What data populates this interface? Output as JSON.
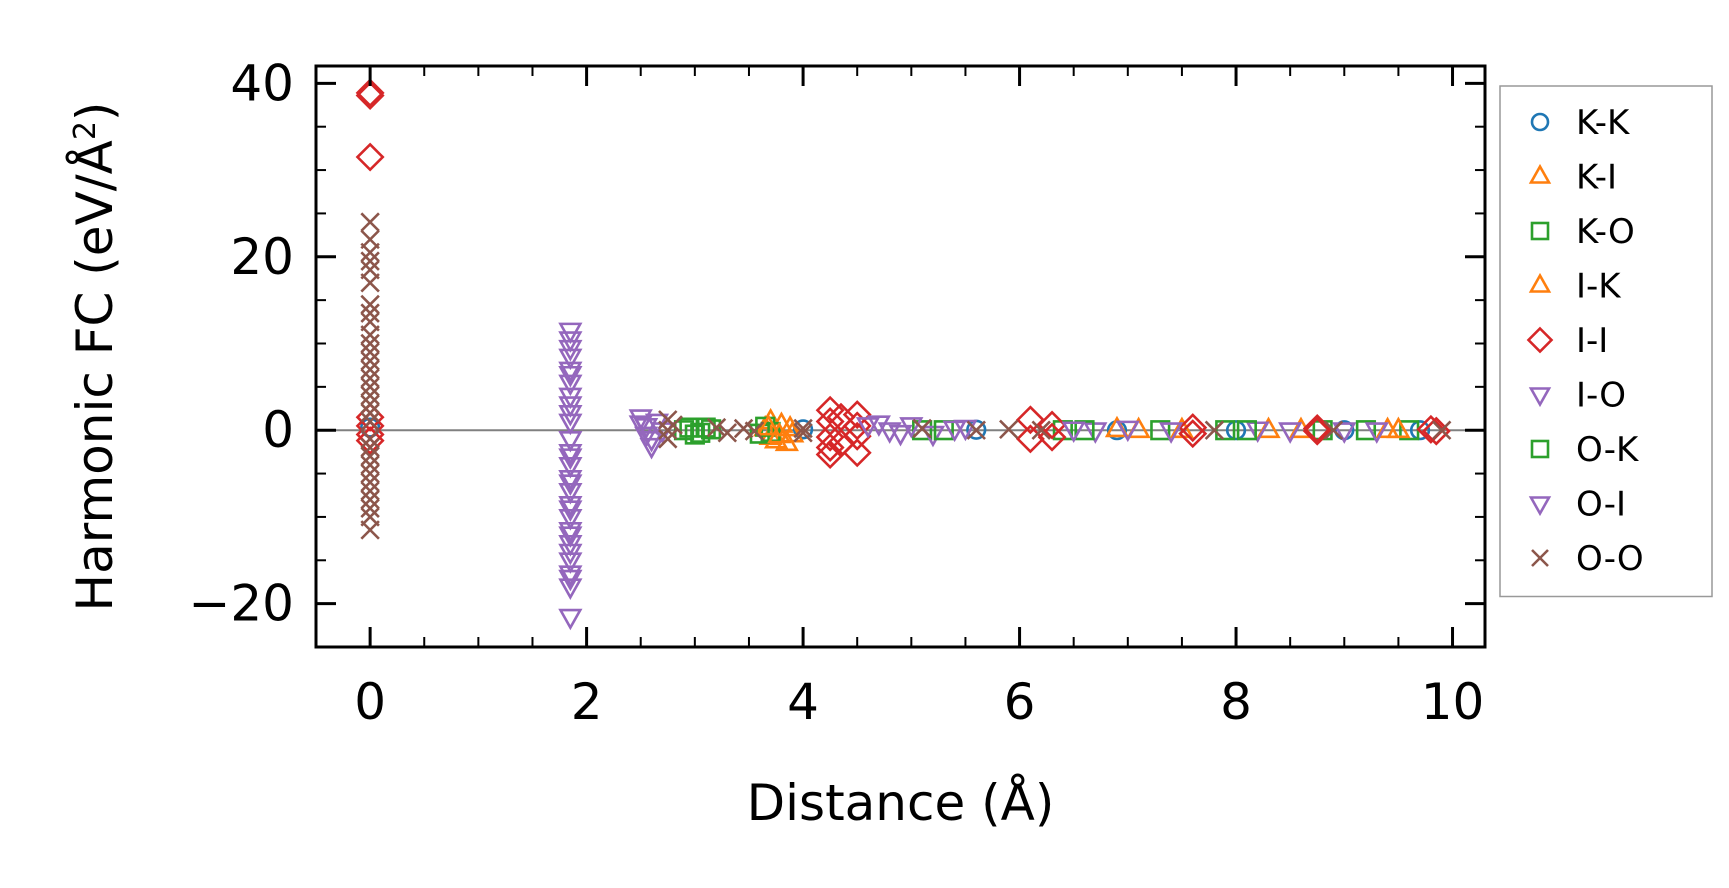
{
  "chart_data": {
    "type": "scatter",
    "title": "",
    "xlabel": "Distance (Å)",
    "ylabel": "Harmonic FC (eV/Å²)",
    "ylabel_base": "Harmonic FC (eV/Å",
    "ylabel_sup": "2",
    "ylabel_end": ")",
    "xlim": [
      -0.5,
      10.3
    ],
    "ylim": [
      -25,
      42
    ],
    "x_ticks": [
      0,
      2,
      4,
      6,
      8,
      10
    ],
    "x_tick_labels": [
      "0",
      "2",
      "4",
      "6",
      "8",
      "10"
    ],
    "y_ticks": [
      -20,
      0,
      20,
      40
    ],
    "y_tick_labels": [
      "−20",
      "0",
      "20",
      "40"
    ],
    "zero_line": 0,
    "grid": false,
    "legend_position": "outside-right",
    "series": [
      {
        "name": "K-K",
        "marker": "circle",
        "color": "#1f77b4",
        "points": [
          [
            0,
            0.3
          ],
          [
            4.0,
            0.1
          ],
          [
            5.6,
            0.05
          ],
          [
            6.9,
            0.0
          ],
          [
            8.0,
            0.0
          ],
          [
            9.0,
            0.0
          ],
          [
            9.7,
            0.0
          ]
        ]
      },
      {
        "name": "K-I",
        "marker": "triangle-up",
        "color": "#ff7f0e",
        "points": [
          [
            3.65,
            0.2
          ],
          [
            3.7,
            -0.8
          ],
          [
            3.75,
            -1.2
          ],
          [
            3.8,
            0.6
          ],
          [
            3.85,
            -1.5
          ],
          [
            3.9,
            -0.5
          ],
          [
            3.7,
            1.0
          ],
          [
            6.9,
            0.1
          ],
          [
            7.5,
            0.0
          ],
          [
            8.6,
            0.0
          ],
          [
            9.4,
            0.0
          ]
        ]
      },
      {
        "name": "K-O",
        "marker": "square",
        "color": "#2ca02c",
        "points": [
          [
            2.9,
            0.0
          ],
          [
            3.0,
            -0.5
          ],
          [
            3.1,
            0.3
          ],
          [
            3.6,
            -0.4
          ],
          [
            3.65,
            0.4
          ],
          [
            3.7,
            -0.2
          ],
          [
            5.1,
            0.0
          ],
          [
            6.4,
            0.0
          ],
          [
            7.3,
            0.0
          ],
          [
            7.9,
            0.0
          ],
          [
            8.8,
            0.0
          ],
          [
            9.6,
            0.0
          ]
        ]
      },
      {
        "name": "I-K",
        "marker": "triangle-up",
        "color": "#ff7f0e",
        "points": [
          [
            3.68,
            0.3
          ],
          [
            3.78,
            -0.6
          ],
          [
            3.88,
            0.2
          ],
          [
            7.1,
            0.0
          ],
          [
            8.3,
            0.0
          ],
          [
            9.5,
            0.0
          ]
        ]
      },
      {
        "name": "I-I",
        "marker": "diamond",
        "color": "#d62728",
        "points": [
          [
            0,
            38.6
          ],
          [
            0,
            38.9
          ],
          [
            0,
            31.5
          ],
          [
            0,
            1.5
          ],
          [
            0,
            0.5
          ],
          [
            0,
            -0.5
          ],
          [
            0,
            -1.2
          ],
          [
            4.25,
            2.3
          ],
          [
            4.25,
            1.0
          ],
          [
            4.25,
            -0.8
          ],
          [
            4.25,
            -2.0
          ],
          [
            4.25,
            -2.8
          ],
          [
            4.35,
            1.5
          ],
          [
            4.35,
            -1.5
          ],
          [
            4.5,
            1.8
          ],
          [
            4.5,
            0.5
          ],
          [
            4.5,
            -0.7
          ],
          [
            4.5,
            -2.6
          ],
          [
            6.1,
            1.2
          ],
          [
            6.1,
            -1.0
          ],
          [
            6.3,
            0.6
          ],
          [
            6.3,
            -0.8
          ],
          [
            7.6,
            0.3
          ],
          [
            7.6,
            -0.4
          ],
          [
            8.75,
            0.2
          ],
          [
            8.75,
            -0.1
          ],
          [
            9.8,
            0.1
          ],
          [
            9.85,
            -0.1
          ]
        ]
      },
      {
        "name": "I-O",
        "marker": "triangle-down",
        "color": "#9467bd",
        "points": [
          [
            1.85,
            11.5
          ],
          [
            1.85,
            10.5
          ],
          [
            1.85,
            9.5
          ],
          [
            1.85,
            8.5
          ],
          [
            1.85,
            7.0
          ],
          [
            1.85,
            5.5
          ],
          [
            1.85,
            4.0
          ],
          [
            1.85,
            2.0
          ],
          [
            1.85,
            1.0
          ],
          [
            1.85,
            -1.0
          ],
          [
            1.85,
            -2.5
          ],
          [
            1.85,
            -4.0
          ],
          [
            1.85,
            -5.5
          ],
          [
            1.85,
            -7.0
          ],
          [
            1.85,
            -8.5
          ],
          [
            1.85,
            -10.0
          ],
          [
            1.85,
            -11.5
          ],
          [
            1.85,
            -13.0
          ],
          [
            1.85,
            -15.0
          ],
          [
            1.85,
            -16.5
          ],
          [
            1.85,
            -18.0
          ],
          [
            1.85,
            -21.5
          ],
          [
            2.5,
            1.5
          ],
          [
            2.55,
            0.5
          ],
          [
            2.55,
            -0.5
          ],
          [
            2.6,
            -1.8
          ],
          [
            2.65,
            1.0
          ],
          [
            2.7,
            0.0
          ],
          [
            4.7,
            0.8
          ],
          [
            4.8,
            0.0
          ],
          [
            5.0,
            0.6
          ],
          [
            5.2,
            -0.4
          ],
          [
            5.5,
            0.3
          ],
          [
            6.7,
            0.0
          ],
          [
            7.0,
            0.2
          ],
          [
            8.2,
            0.1
          ],
          [
            9.0,
            0.0
          ]
        ]
      },
      {
        "name": "O-K",
        "marker": "square",
        "color": "#2ca02c",
        "points": [
          [
            2.95,
            0.3
          ],
          [
            3.05,
            -0.3
          ],
          [
            3.15,
            0.1
          ],
          [
            5.3,
            0.0
          ],
          [
            6.6,
            0.0
          ],
          [
            8.1,
            0.0
          ],
          [
            9.2,
            0.0
          ]
        ]
      },
      {
        "name": "O-I",
        "marker": "triangle-down",
        "color": "#9467bd",
        "points": [
          [
            1.85,
            6.5
          ],
          [
            1.85,
            3.0
          ],
          [
            1.85,
            -3.0
          ],
          [
            1.85,
            -6.0
          ],
          [
            1.85,
            -9.0
          ],
          [
            1.85,
            -12.0
          ],
          [
            1.85,
            -14.0
          ],
          [
            1.85,
            -17.0
          ],
          [
            2.5,
            0.8
          ],
          [
            2.6,
            -1.0
          ],
          [
            4.6,
            0.6
          ],
          [
            4.9,
            -0.3
          ],
          [
            5.4,
            0.2
          ],
          [
            6.5,
            0.1
          ],
          [
            7.4,
            0.0
          ],
          [
            8.5,
            0.0
          ],
          [
            9.3,
            0.0
          ]
        ]
      },
      {
        "name": "O-O",
        "marker": "x",
        "color": "#8c564b",
        "points": [
          [
            0,
            24.0
          ],
          [
            0,
            22.0
          ],
          [
            0,
            20.5
          ],
          [
            0,
            19.5
          ],
          [
            0,
            18.5
          ],
          [
            0,
            17.0
          ],
          [
            0,
            14.5
          ],
          [
            0,
            13.5
          ],
          [
            0,
            12.5
          ],
          [
            0,
            11.0
          ],
          [
            0,
            10.0
          ],
          [
            0,
            9.0
          ],
          [
            0,
            8.0
          ],
          [
            0,
            7.0
          ],
          [
            0,
            6.0
          ],
          [
            0,
            5.0
          ],
          [
            0,
            4.0
          ],
          [
            0,
            3.0
          ],
          [
            0,
            2.0
          ],
          [
            0,
            1.0
          ],
          [
            0,
            -1.0
          ],
          [
            0,
            -2.0
          ],
          [
            0,
            -3.0
          ],
          [
            0,
            -4.0
          ],
          [
            0,
            -5.0
          ],
          [
            0,
            -6.0
          ],
          [
            0,
            -7.0
          ],
          [
            0,
            -8.0
          ],
          [
            0,
            -9.0
          ],
          [
            0,
            -10.0
          ],
          [
            0,
            -11.5
          ],
          [
            2.75,
            1.2
          ],
          [
            2.75,
            0.0
          ],
          [
            2.75,
            -1.0
          ],
          [
            2.8,
            0.6
          ],
          [
            3.2,
            0.3
          ],
          [
            3.3,
            -0.3
          ],
          [
            3.45,
            0.2
          ],
          [
            3.55,
            -0.1
          ],
          [
            4.0,
            0.2
          ],
          [
            4.0,
            -0.3
          ],
          [
            5.1,
            0.2
          ],
          [
            5.6,
            0.0
          ],
          [
            5.9,
            0.1
          ],
          [
            6.2,
            0.0
          ],
          [
            7.8,
            0.0
          ],
          [
            8.9,
            0.0
          ],
          [
            9.9,
            0.0
          ]
        ]
      }
    ]
  }
}
